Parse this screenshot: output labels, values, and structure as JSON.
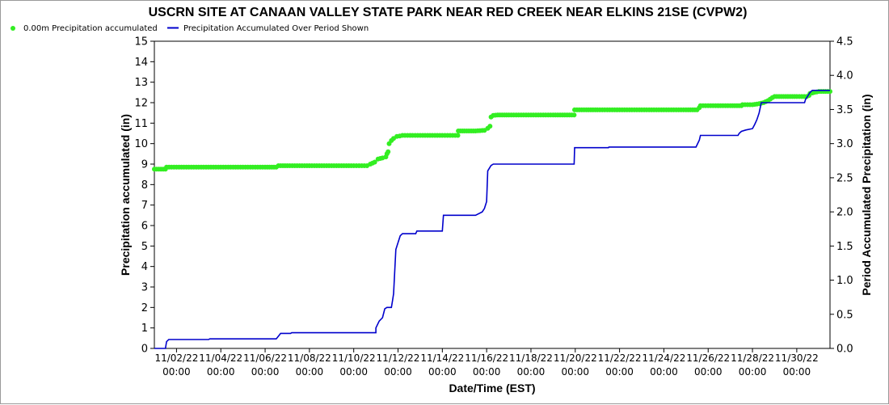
{
  "chart_data": {
    "type": "line",
    "title": "USCRN SITE AT CANAAN VALLEY STATE PARK NEAR RED CREEK NEAR ELKINS 21SE (CVPW2)",
    "xlabel": "Date/Time (EST)",
    "ylabel": "Precipitation accumulated (in)",
    "y2label": "Period Accumulated Precipitation (in)",
    "x_range": [
      "11/01/22 00:00",
      "12/01/22 12:00"
    ],
    "ylim": [
      0,
      15
    ],
    "y2lim": [
      0,
      4.5
    ],
    "yticks": [
      "0",
      "1",
      "2",
      "3",
      "4",
      "5",
      "6",
      "7",
      "8",
      "9",
      "10",
      "11",
      "12",
      "13",
      "14",
      "15"
    ],
    "y2ticks": [
      "0.0",
      "0.5",
      "1.0",
      "1.5",
      "2.0",
      "2.5",
      "3.0",
      "3.5",
      "4.0",
      "4.5"
    ],
    "xticks": [
      {
        "date": "11/02/22",
        "time": "00:00",
        "x": 1
      },
      {
        "date": "11/04/22",
        "time": "00:00",
        "x": 3
      },
      {
        "date": "11/06/22",
        "time": "00:00",
        "x": 5
      },
      {
        "date": "11/08/22",
        "time": "00:00",
        "x": 7
      },
      {
        "date": "11/10/22",
        "time": "00:00",
        "x": 9
      },
      {
        "date": "11/12/22",
        "time": "00:00",
        "x": 11
      },
      {
        "date": "11/14/22",
        "time": "00:00",
        "x": 13
      },
      {
        "date": "11/16/22",
        "time": "00:00",
        "x": 15
      },
      {
        "date": "11/18/22",
        "time": "00:00",
        "x": 17
      },
      {
        "date": "11/20/22",
        "time": "00:00",
        "x": 19
      },
      {
        "date": "11/22/22",
        "time": "00:00",
        "x": 21
      },
      {
        "date": "11/24/22",
        "time": "00:00",
        "x": 23
      },
      {
        "date": "11/26/22",
        "time": "00:00",
        "x": 25
      },
      {
        "date": "11/28/22",
        "time": "00:00",
        "x": 27
      },
      {
        "date": "11/30/22",
        "time": "00:00",
        "x": 29
      }
    ],
    "grid": false,
    "legend_position": "top-left",
    "series": [
      {
        "name": "0.00m Precipitation accumulated",
        "axis": "left",
        "style": "points",
        "color": "#33ee22",
        "points": [
          [
            0,
            8.75
          ],
          [
            0.5,
            8.75
          ],
          [
            0.55,
            8.85
          ],
          [
            1,
            8.85
          ],
          [
            2,
            8.85
          ],
          [
            3,
            8.85
          ],
          [
            4,
            8.85
          ],
          [
            5,
            8.85
          ],
          [
            5.5,
            8.85
          ],
          [
            5.6,
            8.92
          ],
          [
            6,
            8.92
          ],
          [
            7,
            8.92
          ],
          [
            8,
            8.92
          ],
          [
            9,
            8.92
          ],
          [
            9.6,
            8.92
          ],
          [
            9.75,
            9.0
          ],
          [
            9.95,
            9.1
          ],
          [
            10.1,
            9.25
          ],
          [
            10.3,
            9.3
          ],
          [
            10.45,
            9.35
          ],
          [
            10.5,
            9.5
          ],
          [
            10.55,
            9.6
          ],
          [
            10.6,
            10.0
          ],
          [
            10.7,
            10.15
          ],
          [
            10.8,
            10.25
          ],
          [
            10.95,
            10.35
          ],
          [
            11.2,
            10.4
          ],
          [
            12,
            10.4
          ],
          [
            13,
            10.4
          ],
          [
            13.7,
            10.4
          ],
          [
            13.72,
            10.62
          ],
          [
            14,
            10.62
          ],
          [
            14.5,
            10.62
          ],
          [
            14.9,
            10.65
          ],
          [
            15.05,
            10.75
          ],
          [
            15.15,
            10.85
          ],
          [
            15.2,
            11.3
          ],
          [
            15.3,
            11.38
          ],
          [
            15.5,
            11.4
          ],
          [
            16,
            11.4
          ],
          [
            17,
            11.4
          ],
          [
            18,
            11.4
          ],
          [
            18.95,
            11.4
          ],
          [
            18.97,
            11.65
          ],
          [
            19.5,
            11.65
          ],
          [
            20,
            11.65
          ],
          [
            21,
            11.65
          ],
          [
            22,
            11.65
          ],
          [
            23,
            11.65
          ],
          [
            24,
            11.65
          ],
          [
            24.5,
            11.65
          ],
          [
            24.6,
            11.75
          ],
          [
            24.65,
            11.85
          ],
          [
            25,
            11.85
          ],
          [
            26,
            11.85
          ],
          [
            26.5,
            11.85
          ],
          [
            26.55,
            11.9
          ],
          [
            27,
            11.9
          ],
          [
            27.3,
            11.95
          ],
          [
            27.5,
            12.0
          ],
          [
            27.7,
            12.1
          ],
          [
            27.9,
            12.25
          ],
          [
            28,
            12.3
          ],
          [
            28.5,
            12.3
          ],
          [
            29,
            12.3
          ],
          [
            29.45,
            12.3
          ],
          [
            29.55,
            12.35
          ],
          [
            29.6,
            12.45
          ],
          [
            30,
            12.55
          ],
          [
            30.5,
            12.55
          ]
        ]
      },
      {
        "name": "Precipitation Accumulated Over Period Shown",
        "axis": "right",
        "style": "line",
        "color": "#0000cc",
        "points": [
          [
            0,
            0
          ],
          [
            0.5,
            0
          ],
          [
            0.55,
            0.1
          ],
          [
            0.65,
            0.13
          ],
          [
            1,
            0.13
          ],
          [
            2,
            0.13
          ],
          [
            2.45,
            0.13
          ],
          [
            2.5,
            0.14
          ],
          [
            3,
            0.14
          ],
          [
            4,
            0.14
          ],
          [
            5,
            0.14
          ],
          [
            5.5,
            0.14
          ],
          [
            5.65,
            0.2
          ],
          [
            5.7,
            0.22
          ],
          [
            6,
            0.22
          ],
          [
            6.15,
            0.22
          ],
          [
            6.2,
            0.23
          ],
          [
            7,
            0.23
          ],
          [
            8,
            0.23
          ],
          [
            9,
            0.23
          ],
          [
            10,
            0.23
          ],
          [
            10.0,
            0.3
          ],
          [
            10.15,
            0.4
          ],
          [
            10.3,
            0.45
          ],
          [
            10.4,
            0.58
          ],
          [
            10.5,
            0.6
          ],
          [
            10.7,
            0.6
          ],
          [
            10.75,
            0.7
          ],
          [
            10.8,
            0.8
          ],
          [
            10.9,
            1.45
          ],
          [
            11,
            1.55
          ],
          [
            11.1,
            1.65
          ],
          [
            11.2,
            1.68
          ],
          [
            11.8,
            1.68
          ],
          [
            11.85,
            1.72
          ],
          [
            12.5,
            1.72
          ],
          [
            13.0,
            1.72
          ],
          [
            13.05,
            1.95
          ],
          [
            13.5,
            1.95
          ],
          [
            14.5,
            1.95
          ],
          [
            14.8,
            2.0
          ],
          [
            14.9,
            2.05
          ],
          [
            15.0,
            2.15
          ],
          [
            15.05,
            2.6
          ],
          [
            15.2,
            2.68
          ],
          [
            15.3,
            2.7
          ],
          [
            16,
            2.7
          ],
          [
            17,
            2.7
          ],
          [
            18,
            2.7
          ],
          [
            18.95,
            2.7
          ],
          [
            18.97,
            2.94
          ],
          [
            19.5,
            2.94
          ],
          [
            20,
            2.94
          ],
          [
            20.5,
            2.94
          ],
          [
            20.52,
            2.95
          ],
          [
            21,
            2.95
          ],
          [
            22,
            2.95
          ],
          [
            23,
            2.95
          ],
          [
            24,
            2.95
          ],
          [
            24.45,
            2.95
          ],
          [
            24.6,
            3.05
          ],
          [
            24.65,
            3.12
          ],
          [
            25,
            3.12
          ],
          [
            26,
            3.12
          ],
          [
            26.35,
            3.12
          ],
          [
            26.4,
            3.15
          ],
          [
            26.5,
            3.18
          ],
          [
            26.7,
            3.2
          ],
          [
            27.0,
            3.22
          ],
          [
            27.1,
            3.28
          ],
          [
            27.2,
            3.35
          ],
          [
            27.3,
            3.45
          ],
          [
            27.4,
            3.6
          ],
          [
            28,
            3.6
          ],
          [
            28.5,
            3.6
          ],
          [
            29,
            3.6
          ],
          [
            29.35,
            3.6
          ],
          [
            29.4,
            3.65
          ],
          [
            29.5,
            3.7
          ],
          [
            29.6,
            3.75
          ],
          [
            29.7,
            3.78
          ],
          [
            30,
            3.78
          ],
          [
            30.5,
            3.78
          ]
        ]
      }
    ]
  }
}
